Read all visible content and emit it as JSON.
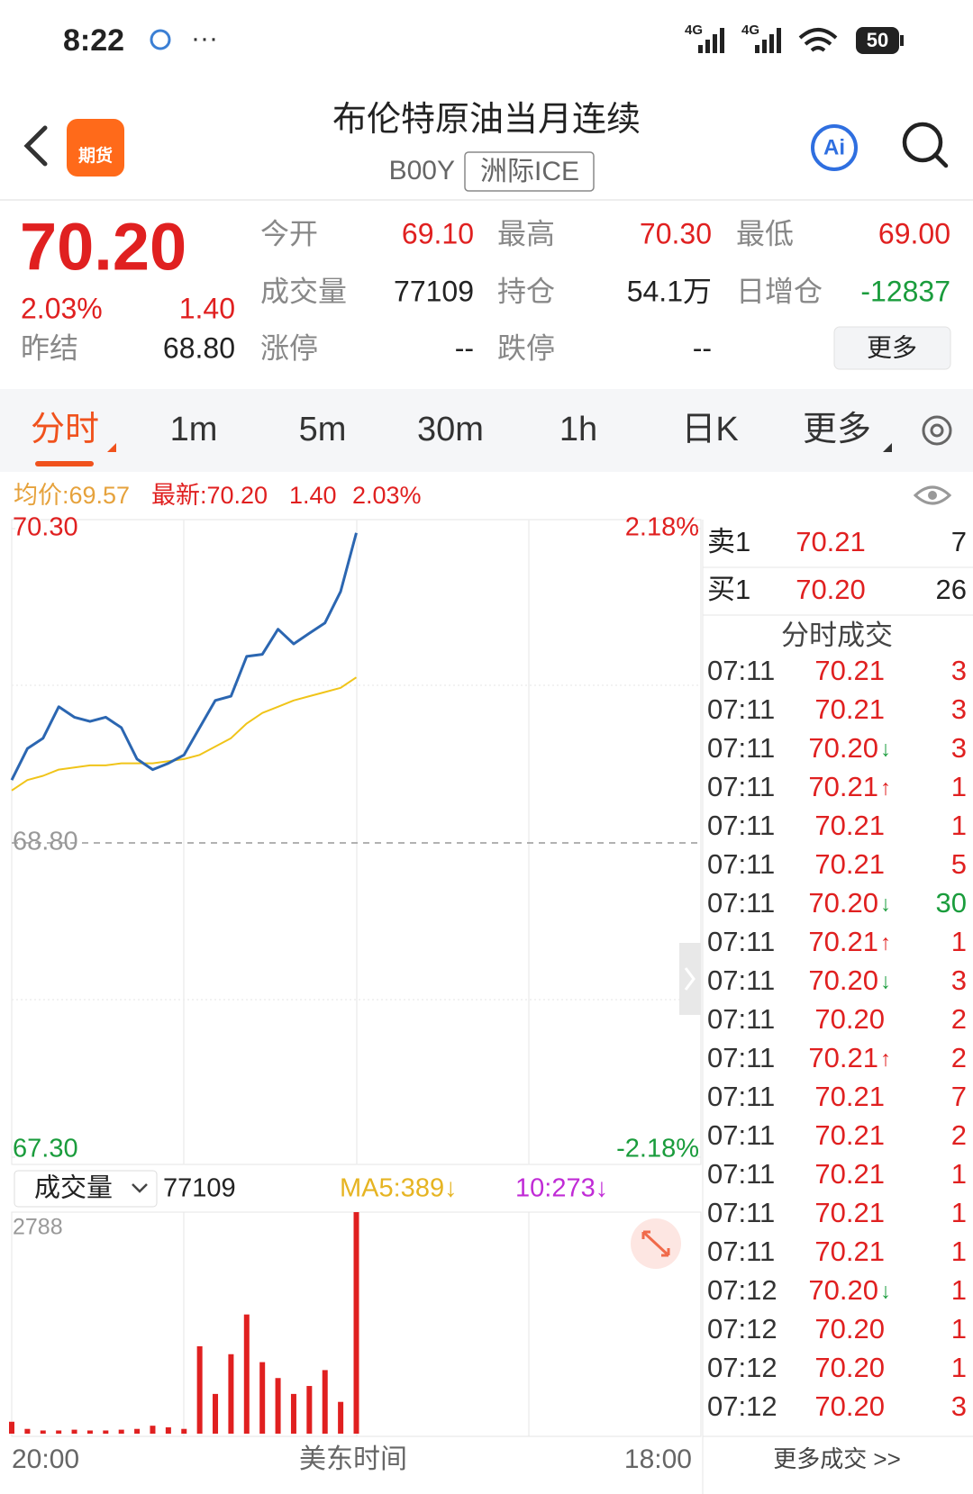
{
  "status_bar": {
    "time": "8:22",
    "signal_1": "4G",
    "signal_2": "4G",
    "battery": "50"
  },
  "header": {
    "title": "布伦特原油当月连续",
    "code": "B00Y",
    "exchange": "洲际ICE",
    "logo": "期货",
    "ai": "Ai"
  },
  "quote": {
    "price": "70.20",
    "change_pct": "2.03%",
    "change": "1.40",
    "prev_close_label": "昨结",
    "prev_close": "68.80",
    "fields": [
      {
        "label": "今开",
        "value": "69.10",
        "color": "#e02020"
      },
      {
        "label": "最高",
        "value": "70.30",
        "color": "#e02020"
      },
      {
        "label": "最低",
        "value": "69.00",
        "color": "#e02020"
      },
      {
        "label": "成交量",
        "value": "77109",
        "color": "#222222"
      },
      {
        "label": "持仓",
        "value": "54.1万",
        "color": "#222222"
      },
      {
        "label": "日增仓",
        "value": "-12837",
        "color": "#1a9c3c"
      },
      {
        "label": "涨停",
        "value": "--",
        "color": "#222222"
      },
      {
        "label": "跌停",
        "value": "--",
        "color": "#222222"
      }
    ],
    "more_button": "更多"
  },
  "tabs": [
    "分时",
    "1m",
    "5m",
    "30m",
    "1h",
    "日K",
    "更多"
  ],
  "chart_legend": {
    "avg": "均价:69.57",
    "latest": "最新:70.20",
    "change": "1.40",
    "change_pct": "2.03%"
  },
  "chart_data": [
    {
      "type": "line",
      "categories": [
        "20:00",
        null,
        null,
        null,
        null,
        null,
        null,
        null,
        null,
        null,
        null,
        null,
        null,
        null,
        null,
        null,
        null,
        null,
        null,
        null,
        null,
        null,
        null,
        null,
        null,
        null,
        null,
        null,
        null,
        null,
        null,
        null,
        null,
        null,
        null,
        null,
        null,
        null,
        null,
        null,
        null,
        null,
        null,
        null,
        "18:00"
      ],
      "x_axis_label": "美东时间",
      "series": [
        {
          "color": "#2b66b1",
          "values": [
            69.1,
            69.25,
            69.3,
            69.45,
            69.4,
            69.38,
            69.4,
            69.35,
            69.2,
            69.15,
            69.18,
            69.22,
            69.35,
            69.48,
            69.5,
            69.69,
            69.7,
            69.82,
            69.75,
            69.8,
            69.85,
            70.0,
            70.28,
            null,
            null,
            null,
            null,
            null,
            null,
            null,
            null,
            null,
            null,
            null,
            null,
            null,
            null,
            null,
            null,
            null,
            null,
            null,
            null,
            null,
            null
          ]
        },
        {
          "color": "#f0c419",
          "values": [
            69.05,
            69.1,
            69.12,
            69.15,
            69.16,
            69.17,
            69.17,
            69.18,
            69.18,
            69.18,
            69.19,
            69.2,
            69.22,
            69.26,
            69.3,
            69.37,
            69.42,
            69.45,
            69.48,
            69.5,
            69.52,
            69.54,
            69.59,
            null,
            null,
            null,
            null,
            null,
            null,
            null,
            null,
            null,
            null,
            null,
            null,
            null,
            null,
            null,
            null,
            null,
            null,
            null,
            null,
            null,
            null
          ]
        }
      ],
      "ylim": [
        67.3,
        70.3
      ],
      "yticks": [
        {
          "value": 70.3,
          "label": "70.30"
        },
        {
          "value": 68.8,
          "label": "68.80"
        },
        {
          "value": 67.3,
          "label": "67.30"
        }
      ],
      "ytick_colors": [
        "#e02020",
        "#999999",
        "#1a9c3c"
      ],
      "y2lim": [
        -2.18,
        2.18
      ],
      "y2ticks": [
        {
          "value": 2.18,
          "label": "2.18%"
        },
        {
          "value": -2.18,
          "label": "-2.18%"
        }
      ],
      "y2tick_colors": [
        "#e02020",
        "#1a9c3c"
      ]
    },
    {
      "type": "bar",
      "color": "#e02020",
      "values": [
        150,
        60,
        40,
        40,
        50,
        40,
        40,
        50,
        60,
        100,
        80,
        60,
        1100,
        500,
        1000,
        1500,
        900,
        700,
        500,
        600,
        800,
        400,
        2788,
        null,
        null,
        null,
        null,
        null,
        null,
        null,
        null,
        null,
        null,
        null,
        null,
        null,
        null,
        null,
        null,
        null,
        null,
        null,
        null,
        null,
        null
      ],
      "ylim": [
        0,
        2788
      ],
      "yticks": [
        2788
      ]
    }
  ],
  "volume_header": {
    "selector": "成交量",
    "total": "77109",
    "ma5": "MA5:389↓",
    "ma10": "10:273↓"
  },
  "order_book": [
    {
      "side": "卖1",
      "price": "70.21",
      "volume": "7"
    },
    {
      "side": "买1",
      "price": "70.20",
      "volume": "26"
    }
  ],
  "trades_title": "分时成交",
  "trades": [
    {
      "time": "07:11",
      "price": "70.21",
      "volume": "3",
      "color": "#e02020"
    },
    {
      "time": "07:11",
      "price": "70.21",
      "volume": "3",
      "color": "#e02020"
    },
    {
      "time": "07:11",
      "price": "70.20",
      "flag": "↓",
      "volume": "3",
      "color": "#e02020"
    },
    {
      "time": "07:11",
      "price": "70.21",
      "flag": "↑",
      "volume": "1",
      "color": "#e02020"
    },
    {
      "time": "07:11",
      "price": "70.21",
      "volume": "1",
      "color": "#e02020"
    },
    {
      "time": "07:11",
      "price": "70.21",
      "volume": "5",
      "color": "#e02020"
    },
    {
      "time": "07:11",
      "price": "70.20",
      "flag": "↓",
      "volume": "30",
      "color": "#1a9c3c"
    },
    {
      "time": "07:11",
      "price": "70.21",
      "flag": "↑",
      "volume": "1",
      "color": "#e02020"
    },
    {
      "time": "07:11",
      "price": "70.20",
      "flag": "↓",
      "volume": "3",
      "color": "#e02020"
    },
    {
      "time": "07:11",
      "price": "70.20",
      "volume": "2",
      "color": "#e02020"
    },
    {
      "time": "07:11",
      "price": "70.21",
      "flag": "↑",
      "volume": "2",
      "color": "#e02020"
    },
    {
      "time": "07:11",
      "price": "70.21",
      "volume": "7",
      "color": "#e02020"
    },
    {
      "time": "07:11",
      "price": "70.21",
      "volume": "2",
      "color": "#e02020"
    },
    {
      "time": "07:11",
      "price": "70.21",
      "volume": "1",
      "color": "#e02020"
    },
    {
      "time": "07:11",
      "price": "70.21",
      "volume": "1",
      "color": "#e02020"
    },
    {
      "time": "07:11",
      "price": "70.21",
      "volume": "1",
      "color": "#e02020"
    },
    {
      "time": "07:12",
      "price": "70.20",
      "flag": "↓",
      "volume": "1",
      "color": "#e02020"
    },
    {
      "time": "07:12",
      "price": "70.20",
      "volume": "1",
      "color": "#e02020"
    },
    {
      "time": "07:12",
      "price": "70.20",
      "volume": "1",
      "color": "#e02020"
    },
    {
      "time": "07:12",
      "price": "70.20",
      "volume": "3",
      "color": "#e02020"
    }
  ],
  "more_trades": "更多成交 >>"
}
